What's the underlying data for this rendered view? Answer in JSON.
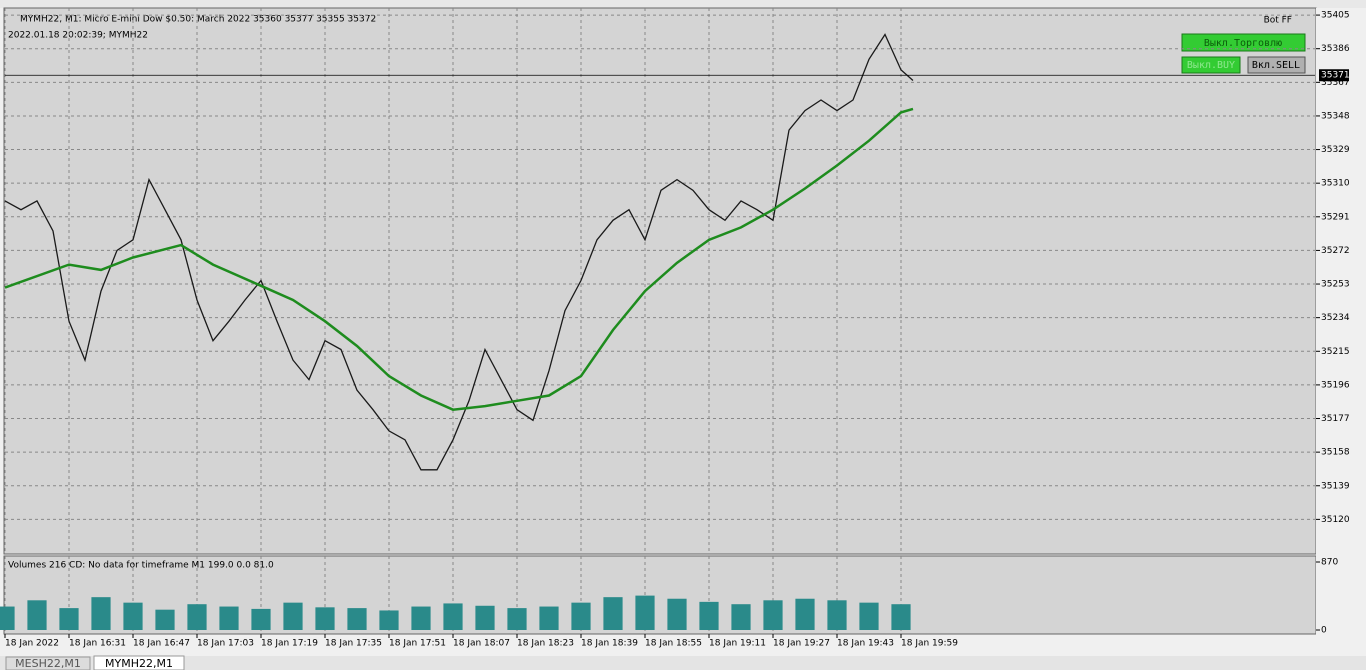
{
  "window": {
    "info": "MYMH22, M1:  Micro E-mini Dow $0.50: March 2022  35360 35377 35355 35372",
    "datetime": "2022.01.18 20:02:39; MYMH22",
    "bot": "Bot FF",
    "buttons": [
      "Выкл.Торговлю",
      "Выкл.BUY",
      "Вкл.SELL"
    ],
    "tabs": [
      "MESH22,M1",
      "MYMH22,M1"
    ]
  },
  "chart_data": [
    {
      "type": "line",
      "grid": true,
      "last_price": 35371,
      "xlim": [
        0,
        327.5
      ],
      "xticks": [
        {
          "value": 0,
          "label": "18 Jan 2022"
        },
        {
          "value": 16,
          "label": "18 Jan 16:31"
        },
        {
          "value": 32,
          "label": "18 Jan 16:47"
        },
        {
          "value": 48,
          "label": "18 Jan 17:03"
        },
        {
          "value": 64,
          "label": "18 Jan 17:19"
        },
        {
          "value": 80,
          "label": "18 Jan 17:35"
        },
        {
          "value": 96,
          "label": "18 Jan 17:51"
        },
        {
          "value": 112,
          "label": "18 Jan 18:07"
        },
        {
          "value": 128,
          "label": "18 Jan 18:23"
        },
        {
          "value": 144,
          "label": "18 Jan 18:39"
        },
        {
          "value": 160,
          "label": "18 Jan 18:55"
        },
        {
          "value": 176,
          "label": "18 Jan 19:11"
        },
        {
          "value": 192,
          "label": "18 Jan 19:27"
        },
        {
          "value": 208,
          "label": "18 Jan 19:43"
        },
        {
          "value": 224,
          "label": "18 Jan 19:59"
        }
      ],
      "ylim": [
        35101,
        35409
      ],
      "yticks": [
        35405,
        35386,
        35367,
        35348,
        35329,
        35310,
        35291,
        35272,
        35253,
        35234,
        35215,
        35196,
        35177,
        35158,
        35139,
        35120
      ],
      "series": [
        {
          "color": "#1a1a1a",
          "x": [
            0,
            4,
            8,
            12,
            16,
            20,
            24,
            28,
            32,
            36,
            40,
            44,
            48,
            52,
            56,
            60,
            64,
            68,
            72,
            76,
            80,
            84,
            88,
            92,
            96,
            100,
            104,
            108,
            112,
            116,
            120,
            124,
            128,
            132,
            136,
            140,
            144,
            148,
            152,
            156,
            160,
            164,
            168,
            172,
            176,
            180,
            184,
            188,
            192,
            196,
            200,
            204,
            208,
            212,
            216,
            220,
            224,
            227
          ],
          "values": [
            35300,
            35295,
            35300,
            35283,
            35232,
            35210,
            35249,
            35272,
            35278,
            35312,
            35295,
            35278,
            35244,
            35221,
            35232,
            35244,
            35255,
            35232,
            35210,
            35199,
            35221,
            35216,
            35193,
            35182,
            35170,
            35165,
            35148,
            35148,
            35165,
            35187,
            35216,
            35199,
            35182,
            35176,
            35204,
            35238,
            35255,
            35278,
            35289,
            35295,
            35278,
            35306,
            35312,
            35306,
            35295,
            35289,
            35300,
            35295,
            35289,
            35340,
            35351,
            35357,
            35351,
            35357,
            35380,
            35394,
            35374,
            35368
          ]
        },
        {
          "color": "#1e8c1e",
          "x": [
            0,
            16,
            24,
            32,
            44,
            52,
            64,
            72,
            80,
            88,
            96,
            104,
            112,
            120,
            128,
            136,
            144,
            152,
            160,
            168,
            176,
            184,
            192,
            200,
            208,
            216,
            224,
            227
          ],
          "values": [
            35251,
            35264,
            35261,
            35268,
            35275,
            35264,
            35252,
            35244,
            35232,
            35218,
            35201,
            35190,
            35182,
            35184,
            35187,
            35190,
            35201,
            35227,
            35249,
            35265,
            35278,
            35285,
            35295,
            35307,
            35320,
            35334,
            35350,
            35352
          ]
        }
      ]
    },
    {
      "type": "bar",
      "title": "Volumes 216 CD: No data for timeframe M1 199.0 0.0 81.0",
      "color": "#2a8a8a",
      "ylim": [
        0,
        870
      ],
      "yticks": [
        870,
        0
      ],
      "x": [
        0,
        8,
        16,
        24,
        32,
        40,
        48,
        56,
        64,
        72,
        80,
        88,
        96,
        104,
        112,
        120,
        128,
        136,
        144,
        152,
        160,
        168,
        176,
        184,
        192,
        200,
        208,
        216,
        224
      ],
      "values": [
        300,
        380,
        280,
        420,
        350,
        260,
        330,
        300,
        270,
        350,
        290,
        280,
        250,
        300,
        340,
        310,
        280,
        300,
        350,
        420,
        440,
        400,
        360,
        330,
        380,
        400,
        380,
        350,
        330
      ]
    }
  ]
}
